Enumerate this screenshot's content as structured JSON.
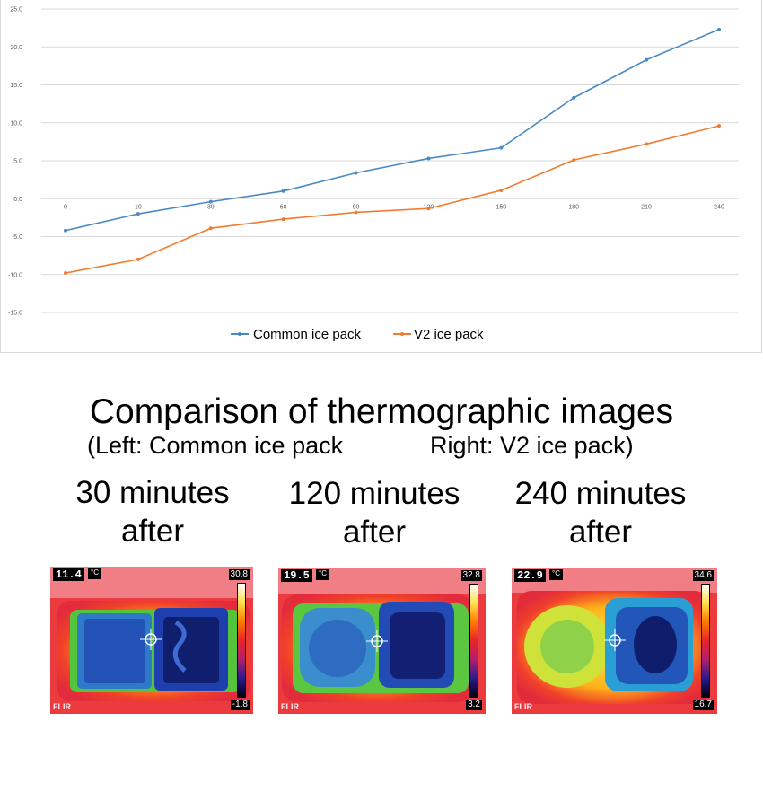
{
  "chart_data": {
    "type": "line",
    "categories": [
      "0",
      "10",
      "30",
      "60",
      "90",
      "120",
      "150",
      "180",
      "210",
      "240"
    ],
    "series": [
      {
        "name": "Common ice pack",
        "color": "#4a8ac4",
        "values": [
          -4.2,
          -2.0,
          -0.4,
          1.0,
          3.4,
          5.3,
          6.7,
          13.3,
          18.3,
          22.3
        ]
      },
      {
        "name": "V2 ice pack",
        "color": "#ee7d31",
        "values": [
          -9.8,
          -8.0,
          -3.9,
          -2.7,
          -1.8,
          -1.3,
          1.1,
          5.1,
          7.2,
          9.6
        ]
      }
    ],
    "yticks": [
      "25.0",
      "20.0",
      "15.0",
      "10.0",
      "5.0",
      "0.0",
      "-5.0",
      "-10.0",
      "-15.0"
    ],
    "ylim": [
      -15,
      25
    ],
    "grid": true,
    "legend": "bottom"
  },
  "section": {
    "title": "Comparison of thermographic images",
    "subtitle_left": "(Left: Common ice pack",
    "subtitle_right": "Right: V2 ice pack)"
  },
  "captions": [
    {
      "line1": "30 minutes",
      "line2": "after"
    },
    {
      "line1": "120 minutes",
      "line2": "after"
    },
    {
      "line1": "240 minutes",
      "line2": "after"
    }
  ],
  "thermo": [
    {
      "spot": "11.4",
      "unit": "°C",
      "max": "30.8",
      "min": "-1.8",
      "logo": "FLIR"
    },
    {
      "spot": "19.5",
      "unit": "°C",
      "max": "32.8",
      "min": "3.2",
      "logo": "FLIR"
    },
    {
      "spot": "22.9",
      "unit": "°C",
      "max": "34.6",
      "min": "16.7",
      "logo": "FLIR"
    }
  ]
}
